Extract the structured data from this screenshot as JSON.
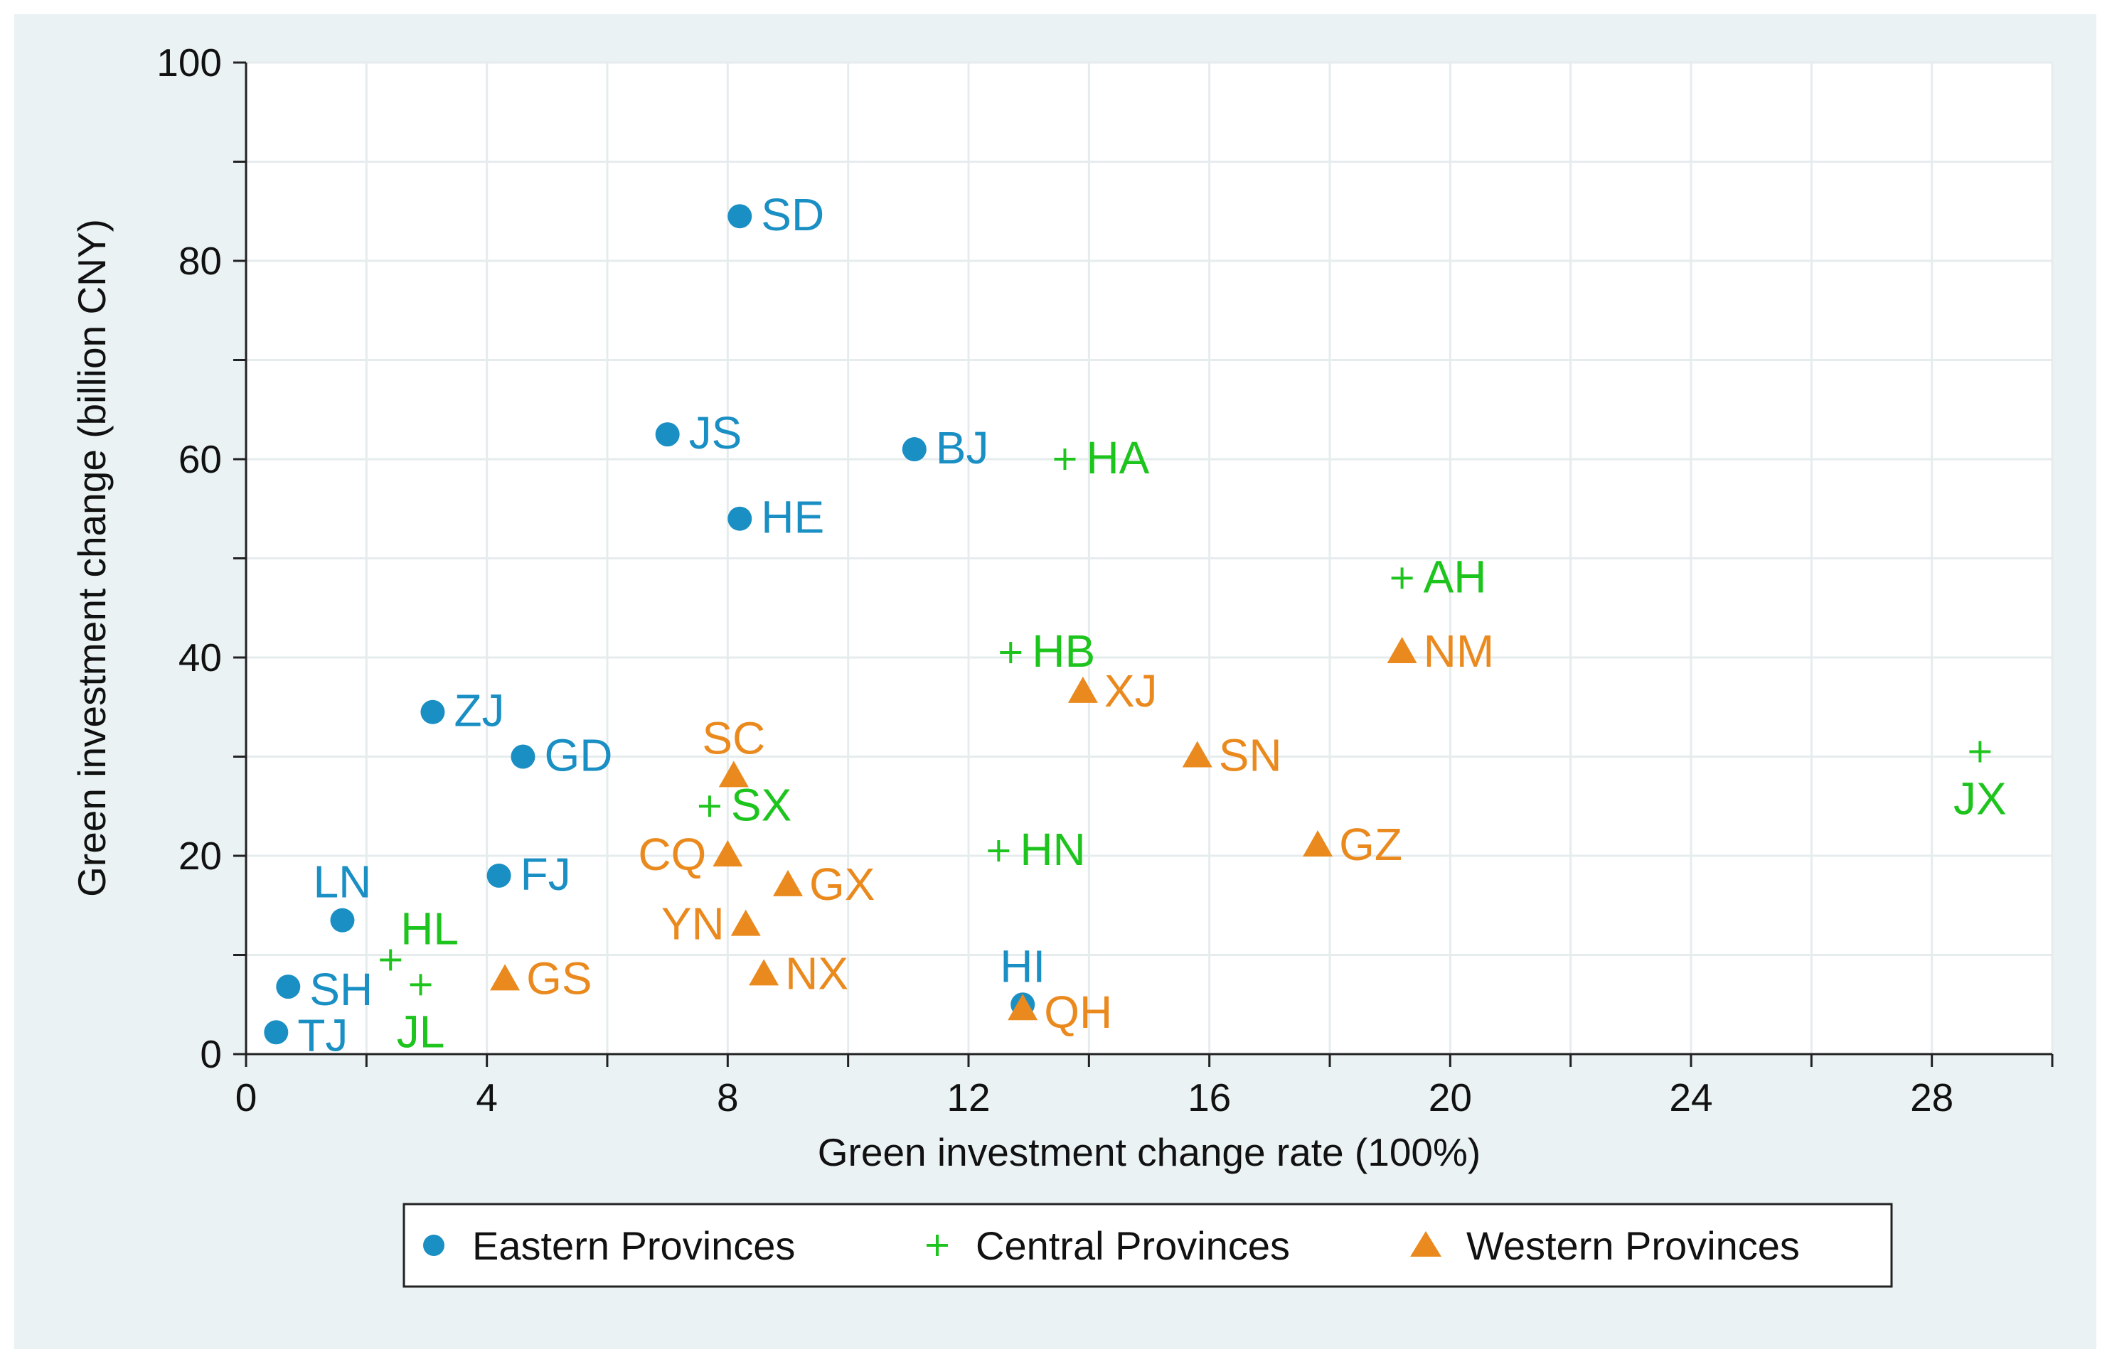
{
  "chart_data": {
    "type": "scatter",
    "title": "",
    "xlabel": "Green investment change rate (100%)",
    "ylabel": "Green investment change (billion CNY)",
    "xlim": [
      0,
      30
    ],
    "ylim": [
      0,
      100
    ],
    "x_ticks": [
      0,
      4,
      8,
      12,
      16,
      20,
      24,
      28
    ],
    "y_ticks": [
      0,
      20,
      40,
      60,
      80,
      100
    ],
    "grid": true,
    "legend_position": "bottom",
    "colors": {
      "eastern": "#1a8fc4",
      "central": "#1ec41e",
      "western": "#ea8a1e",
      "plot_background": "#eaf2f3"
    },
    "series": [
      {
        "name": "Eastern Provinces",
        "key": "eastern",
        "marker": "circle",
        "points": [
          {
            "label": "SD",
            "x": 8.2,
            "y": 84.5
          },
          {
            "label": "JS",
            "x": 7.0,
            "y": 62.5
          },
          {
            "label": "BJ",
            "x": 11.1,
            "y": 61.0
          },
          {
            "label": "HE",
            "x": 8.2,
            "y": 54.0
          },
          {
            "label": "ZJ",
            "x": 3.1,
            "y": 34.5
          },
          {
            "label": "GD",
            "x": 4.6,
            "y": 30.0
          },
          {
            "label": "FJ",
            "x": 4.2,
            "y": 18.0
          },
          {
            "label": "LN",
            "x": 1.6,
            "y": 13.5
          },
          {
            "label": "SH",
            "x": 0.7,
            "y": 6.8
          },
          {
            "label": "TJ",
            "x": 0.5,
            "y": 2.2
          },
          {
            "label": "HI",
            "x": 12.9,
            "y": 5.0
          }
        ]
      },
      {
        "name": "Central Provinces",
        "key": "central",
        "marker": "plus",
        "points": [
          {
            "label": "HA",
            "x": 13.6,
            "y": 60.0
          },
          {
            "label": "AH",
            "x": 19.2,
            "y": 48.0
          },
          {
            "label": "HB",
            "x": 12.7,
            "y": 40.5
          },
          {
            "label": "JX",
            "x": 28.8,
            "y": 30.5
          },
          {
            "label": "SX",
            "x": 7.7,
            "y": 25.0
          },
          {
            "label": "HN",
            "x": 12.5,
            "y": 20.5
          },
          {
            "label": "HL",
            "x": 2.4,
            "y": 9.5
          },
          {
            "label": "JL",
            "x": 2.9,
            "y": 7.0
          }
        ]
      },
      {
        "name": "Western Provinces",
        "key": "western",
        "marker": "triangle",
        "points": [
          {
            "label": "NM",
            "x": 19.2,
            "y": 40.5
          },
          {
            "label": "XJ",
            "x": 13.9,
            "y": 36.5
          },
          {
            "label": "SN",
            "x": 15.8,
            "y": 30.0
          },
          {
            "label": "SC",
            "x": 8.1,
            "y": 28.0
          },
          {
            "label": "GZ",
            "x": 17.8,
            "y": 21.0
          },
          {
            "label": "CQ",
            "x": 8.0,
            "y": 20.0
          },
          {
            "label": "GX",
            "x": 9.0,
            "y": 17.0
          },
          {
            "label": "YN",
            "x": 8.3,
            "y": 13.0
          },
          {
            "label": "NX",
            "x": 8.6,
            "y": 8.0
          },
          {
            "label": "GS",
            "x": 4.3,
            "y": 7.5
          },
          {
            "label": "QH",
            "x": 12.9,
            "y": 4.5
          }
        ]
      }
    ]
  }
}
